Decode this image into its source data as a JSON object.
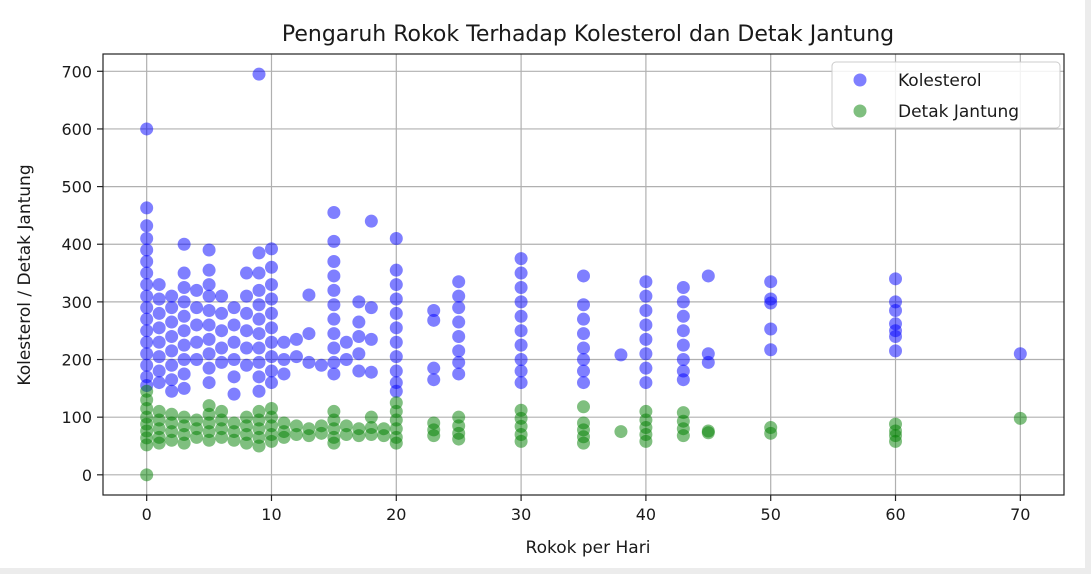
{
  "chart_data": {
    "type": "scatter",
    "title": "Pengaruh Rokok Terhadap Kolesterol dan Detak Jantung",
    "xlabel": "Rokok per Hari",
    "ylabel": "Kolesterol / Detak Jantung",
    "xlim": [
      -3.5,
      73.5
    ],
    "ylim": [
      -35,
      730
    ],
    "xticks": [
      0,
      10,
      20,
      30,
      40,
      50,
      60,
      70
    ],
    "yticks": [
      0,
      100,
      200,
      300,
      400,
      500,
      600,
      700
    ],
    "grid": true,
    "legend": "top-right",
    "series": [
      {
        "name": "Kolesterol",
        "color": "#0000ff",
        "points": [
          [
            0,
            600
          ],
          [
            0,
            463
          ],
          [
            0,
            432
          ],
          [
            0,
            410
          ],
          [
            0,
            390
          ],
          [
            0,
            370
          ],
          [
            0,
            350
          ],
          [
            0,
            330
          ],
          [
            0,
            310
          ],
          [
            0,
            290
          ],
          [
            0,
            270
          ],
          [
            0,
            250
          ],
          [
            0,
            230
          ],
          [
            0,
            210
          ],
          [
            0,
            190
          ],
          [
            0,
            170
          ],
          [
            0,
            155
          ],
          [
            1,
            330
          ],
          [
            1,
            305
          ],
          [
            1,
            280
          ],
          [
            1,
            255
          ],
          [
            1,
            230
          ],
          [
            1,
            205
          ],
          [
            1,
            180
          ],
          [
            1,
            160
          ],
          [
            2,
            310
          ],
          [
            2,
            290
          ],
          [
            2,
            265
          ],
          [
            2,
            240
          ],
          [
            2,
            215
          ],
          [
            2,
            190
          ],
          [
            2,
            165
          ],
          [
            2,
            145
          ],
          [
            3,
            400
          ],
          [
            3,
            350
          ],
          [
            3,
            325
          ],
          [
            3,
            300
          ],
          [
            3,
            275
          ],
          [
            3,
            250
          ],
          [
            3,
            225
          ],
          [
            3,
            200
          ],
          [
            3,
            175
          ],
          [
            3,
            150
          ],
          [
            4,
            320
          ],
          [
            4,
            290
          ],
          [
            4,
            260
          ],
          [
            4,
            230
          ],
          [
            4,
            200
          ],
          [
            5,
            390
          ],
          [
            5,
            355
          ],
          [
            5,
            330
          ],
          [
            5,
            310
          ],
          [
            5,
            285
          ],
          [
            5,
            260
          ],
          [
            5,
            235
          ],
          [
            5,
            210
          ],
          [
            5,
            185
          ],
          [
            5,
            160
          ],
          [
            6,
            310
          ],
          [
            6,
            280
          ],
          [
            6,
            250
          ],
          [
            6,
            220
          ],
          [
            6,
            195
          ],
          [
            7,
            290
          ],
          [
            7,
            260
          ],
          [
            7,
            230
          ],
          [
            7,
            200
          ],
          [
            7,
            170
          ],
          [
            7,
            140
          ],
          [
            8,
            350
          ],
          [
            8,
            310
          ],
          [
            8,
            280
          ],
          [
            8,
            250
          ],
          [
            8,
            220
          ],
          [
            8,
            190
          ],
          [
            9,
            695
          ],
          [
            9,
            385
          ],
          [
            9,
            350
          ],
          [
            9,
            320
          ],
          [
            9,
            295
          ],
          [
            9,
            270
          ],
          [
            9,
            245
          ],
          [
            9,
            220
          ],
          [
            9,
            195
          ],
          [
            9,
            170
          ],
          [
            9,
            145
          ],
          [
            10,
            392
          ],
          [
            10,
            360
          ],
          [
            10,
            330
          ],
          [
            10,
            305
          ],
          [
            10,
            280
          ],
          [
            10,
            255
          ],
          [
            10,
            230
          ],
          [
            10,
            205
          ],
          [
            10,
            180
          ],
          [
            10,
            160
          ],
          [
            11,
            230
          ],
          [
            11,
            200
          ],
          [
            11,
            175
          ],
          [
            12,
            235
          ],
          [
            12,
            205
          ],
          [
            13,
            312
          ],
          [
            13,
            245
          ],
          [
            13,
            195
          ],
          [
            14,
            190
          ],
          [
            15,
            455
          ],
          [
            15,
            405
          ],
          [
            15,
            370
          ],
          [
            15,
            345
          ],
          [
            15,
            320
          ],
          [
            15,
            295
          ],
          [
            15,
            270
          ],
          [
            15,
            245
          ],
          [
            15,
            220
          ],
          [
            15,
            195
          ],
          [
            15,
            175
          ],
          [
            16,
            230
          ],
          [
            16,
            200
          ],
          [
            17,
            300
          ],
          [
            17,
            265
          ],
          [
            17,
            240
          ],
          [
            17,
            210
          ],
          [
            17,
            180
          ],
          [
            18,
            440
          ],
          [
            18,
            290
          ],
          [
            18,
            235
          ],
          [
            18,
            178
          ],
          [
            20,
            410
          ],
          [
            20,
            355
          ],
          [
            20,
            330
          ],
          [
            20,
            305
          ],
          [
            20,
            280
          ],
          [
            20,
            255
          ],
          [
            20,
            230
          ],
          [
            20,
            205
          ],
          [
            20,
            180
          ],
          [
            20,
            160
          ],
          [
            20,
            145
          ],
          [
            23,
            285
          ],
          [
            23,
            268
          ],
          [
            23,
            185
          ],
          [
            23,
            165
          ],
          [
            25,
            335
          ],
          [
            25,
            310
          ],
          [
            25,
            290
          ],
          [
            25,
            265
          ],
          [
            25,
            240
          ],
          [
            25,
            215
          ],
          [
            25,
            195
          ],
          [
            25,
            175
          ],
          [
            30,
            375
          ],
          [
            30,
            350
          ],
          [
            30,
            325
          ],
          [
            30,
            300
          ],
          [
            30,
            275
          ],
          [
            30,
            250
          ],
          [
            30,
            225
          ],
          [
            30,
            200
          ],
          [
            30,
            180
          ],
          [
            30,
            160
          ],
          [
            35,
            345
          ],
          [
            35,
            295
          ],
          [
            35,
            270
          ],
          [
            35,
            245
          ],
          [
            35,
            220
          ],
          [
            35,
            200
          ],
          [
            35,
            180
          ],
          [
            35,
            160
          ],
          [
            38,
            208
          ],
          [
            40,
            335
          ],
          [
            40,
            310
          ],
          [
            40,
            285
          ],
          [
            40,
            260
          ],
          [
            40,
            235
          ],
          [
            40,
            210
          ],
          [
            40,
            185
          ],
          [
            40,
            160
          ],
          [
            43,
            325
          ],
          [
            43,
            300
          ],
          [
            43,
            275
          ],
          [
            43,
            250
          ],
          [
            43,
            225
          ],
          [
            43,
            200
          ],
          [
            43,
            180
          ],
          [
            43,
            165
          ],
          [
            45,
            345
          ],
          [
            45,
            210
          ],
          [
            45,
            195
          ],
          [
            50,
            335
          ],
          [
            50,
            305
          ],
          [
            50,
            298
          ],
          [
            50,
            253
          ],
          [
            50,
            217
          ],
          [
            60,
            340
          ],
          [
            60,
            300
          ],
          [
            60,
            285
          ],
          [
            60,
            262
          ],
          [
            60,
            250
          ],
          [
            60,
            240
          ],
          [
            60,
            215
          ],
          [
            70,
            210
          ]
        ]
      },
      {
        "name": "Detak Jantung",
        "color": "#008000",
        "points": [
          [
            0,
            0
          ],
          [
            0,
            145
          ],
          [
            0,
            130
          ],
          [
            0,
            115
          ],
          [
            0,
            100
          ],
          [
            0,
            88
          ],
          [
            0,
            76
          ],
          [
            0,
            64
          ],
          [
            0,
            52
          ],
          [
            1,
            110
          ],
          [
            1,
            95
          ],
          [
            1,
            80
          ],
          [
            1,
            65
          ],
          [
            1,
            55
          ],
          [
            2,
            105
          ],
          [
            2,
            90
          ],
          [
            2,
            75
          ],
          [
            2,
            60
          ],
          [
            3,
            100
          ],
          [
            3,
            85
          ],
          [
            3,
            70
          ],
          [
            3,
            55
          ],
          [
            4,
            95
          ],
          [
            4,
            80
          ],
          [
            4,
            65
          ],
          [
            5,
            120
          ],
          [
            5,
            105
          ],
          [
            5,
            90
          ],
          [
            5,
            75
          ],
          [
            5,
            60
          ],
          [
            6,
            110
          ],
          [
            6,
            95
          ],
          [
            6,
            80
          ],
          [
            6,
            65
          ],
          [
            7,
            90
          ],
          [
            7,
            75
          ],
          [
            7,
            60
          ],
          [
            8,
            100
          ],
          [
            8,
            85
          ],
          [
            8,
            70
          ],
          [
            8,
            55
          ],
          [
            9,
            110
          ],
          [
            9,
            95
          ],
          [
            9,
            80
          ],
          [
            9,
            65
          ],
          [
            9,
            50
          ],
          [
            10,
            115
          ],
          [
            10,
            100
          ],
          [
            10,
            85
          ],
          [
            10,
            70
          ],
          [
            10,
            58
          ],
          [
            11,
            90
          ],
          [
            11,
            75
          ],
          [
            11,
            65
          ],
          [
            12,
            85
          ],
          [
            12,
            70
          ],
          [
            13,
            80
          ],
          [
            13,
            68
          ],
          [
            14,
            85
          ],
          [
            14,
            72
          ],
          [
            15,
            110
          ],
          [
            15,
            95
          ],
          [
            15,
            80
          ],
          [
            15,
            65
          ],
          [
            15,
            55
          ],
          [
            16,
            85
          ],
          [
            16,
            70
          ],
          [
            17,
            80
          ],
          [
            17,
            68
          ],
          [
            18,
            100
          ],
          [
            18,
            82
          ],
          [
            18,
            70
          ],
          [
            19,
            80
          ],
          [
            19,
            68
          ],
          [
            20,
            125
          ],
          [
            20,
            110
          ],
          [
            20,
            95
          ],
          [
            20,
            80
          ],
          [
            20,
            65
          ],
          [
            20,
            55
          ],
          [
            23,
            90
          ],
          [
            23,
            78
          ],
          [
            23,
            68
          ],
          [
            25,
            100
          ],
          [
            25,
            85
          ],
          [
            25,
            72
          ],
          [
            25,
            62
          ],
          [
            30,
            112
          ],
          [
            30,
            98
          ],
          [
            30,
            84
          ],
          [
            30,
            70
          ],
          [
            30,
            58
          ],
          [
            35,
            118
          ],
          [
            35,
            90
          ],
          [
            35,
            78
          ],
          [
            35,
            66
          ],
          [
            35,
            55
          ],
          [
            38,
            75
          ],
          [
            40,
            110
          ],
          [
            40,
            95
          ],
          [
            40,
            82
          ],
          [
            40,
            70
          ],
          [
            40,
            58
          ],
          [
            43,
            108
          ],
          [
            43,
            93
          ],
          [
            43,
            80
          ],
          [
            43,
            68
          ],
          [
            45,
            76
          ],
          [
            45,
            73
          ],
          [
            50,
            82
          ],
          [
            50,
            72
          ],
          [
            60,
            88
          ],
          [
            60,
            76
          ],
          [
            60,
            68
          ],
          [
            60,
            58
          ],
          [
            70,
            98
          ]
        ]
      }
    ]
  }
}
